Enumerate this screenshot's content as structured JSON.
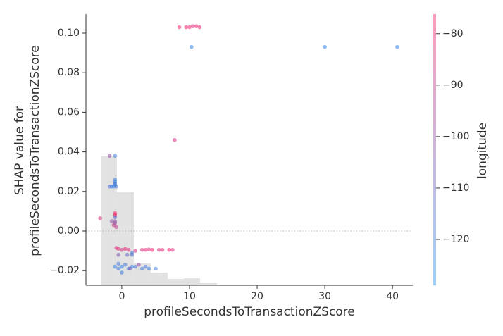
{
  "chart_data": {
    "type": "scatter",
    "xlabel": "profileSecondsToTransactionZScore",
    "ylabel": [
      "SHAP value for",
      "profileSecondsToTransactionZScore"
    ],
    "xlim": [
      -5.3,
      43.0
    ],
    "ylim": [
      -0.0274,
      0.1096
    ],
    "xticks": [
      0,
      10,
      20,
      30,
      40
    ],
    "yticks": [
      {
        "value": -0.02,
        "label": "−0.02"
      },
      {
        "value": 0.0,
        "label": "0.00"
      },
      {
        "value": 0.02,
        "label": "0.02"
      },
      {
        "value": 0.04,
        "label": "0.04"
      },
      {
        "value": 0.06,
        "label": "0.06"
      },
      {
        "value": 0.08,
        "label": "0.08"
      },
      {
        "value": 0.1,
        "label": "0.10"
      }
    ],
    "zero_line": true,
    "histogram": {
      "color": "#e2e2e2",
      "bins": [
        -3.0,
        -0.73,
        1.77,
        4.27,
        6.77,
        9.27,
        11.56,
        14.06
      ],
      "values": [
        0.0377,
        0.0196,
        -0.0164,
        -0.021,
        -0.0242,
        -0.0238,
        -0.0263
      ]
    },
    "x": [
      8.5,
      9.5,
      10.0,
      10.5,
      11.0,
      11.5,
      10.3,
      30.0,
      40.7,
      7.8,
      -1.8,
      -1.0,
      -1.0,
      -1.0,
      -1.0,
      -1.0,
      -1.5,
      -1.2,
      -0.8,
      -1.8,
      -3.2,
      -1.0,
      -1.0,
      -1.0,
      -1.0,
      -1.0,
      -1.2,
      -0.8,
      -1.5,
      -0.8,
      -0.5,
      0.0,
      0.5,
      1.0,
      1.5,
      2.0,
      3.0,
      3.5,
      4.0,
      4.5,
      5.5,
      6.0,
      7.0,
      7.5,
      -1.0,
      -0.5,
      0.0,
      0.5,
      1.0,
      1.5,
      2.0,
      3.0,
      3.5,
      4.0,
      5.0,
      2.5,
      1.2,
      0.0,
      -0.5,
      -0.5,
      0.8,
      1.5
    ],
    "values": [
      0.103,
      0.103,
      0.103,
      0.1035,
      0.1035,
      0.103,
      0.093,
      0.093,
      0.093,
      0.046,
      0.038,
      0.038,
      0.026,
      0.025,
      0.024,
      0.0235,
      0.0225,
      0.0225,
      0.0225,
      0.0225,
      0.0065,
      0.009,
      0.008,
      0.007,
      0.005,
      0.004,
      0.003,
      0.002,
      0.005,
      -0.0085,
      -0.009,
      -0.0095,
      -0.009,
      -0.0095,
      -0.011,
      -0.01,
      -0.0095,
      -0.0095,
      -0.0093,
      -0.0095,
      -0.0095,
      -0.0095,
      -0.0095,
      -0.0095,
      -0.018,
      -0.019,
      -0.018,
      -0.017,
      -0.019,
      -0.018,
      -0.018,
      -0.019,
      -0.018,
      -0.019,
      -0.019,
      -0.017,
      -0.019,
      -0.021,
      -0.0165,
      -0.012,
      -0.012,
      -0.012
    ],
    "color_values": [
      -80,
      -82,
      -80,
      -85,
      -80,
      -82,
      -122,
      -122,
      -122,
      -85,
      -100,
      -120,
      -120,
      -122,
      -120,
      -118,
      -120,
      -122,
      -118,
      -115,
      -85,
      -78,
      -78,
      -115,
      -100,
      -100,
      -90,
      -90,
      -100,
      -85,
      -82,
      -88,
      -80,
      -85,
      -118,
      -85,
      -85,
      -82,
      -85,
      -80,
      -85,
      -82,
      -80,
      -85,
      -122,
      -120,
      -122,
      -118,
      -120,
      -122,
      -115,
      -120,
      -118,
      -122,
      -120,
      -100,
      -105,
      -120,
      -118,
      -105,
      -110,
      -115
    ],
    "colorbar": {
      "label": "longitude",
      "clim": [
        -128.9,
        -76.2
      ],
      "ticks": [
        {
          "value": -80,
          "label": "−80"
        },
        {
          "value": -90,
          "label": "−90"
        },
        {
          "value": -100,
          "label": "−100"
        },
        {
          "value": -110,
          "label": "−110"
        },
        {
          "value": -120,
          "label": "−120"
        }
      ],
      "low_color": "#008afb",
      "high_color": "#ff0052"
    }
  }
}
